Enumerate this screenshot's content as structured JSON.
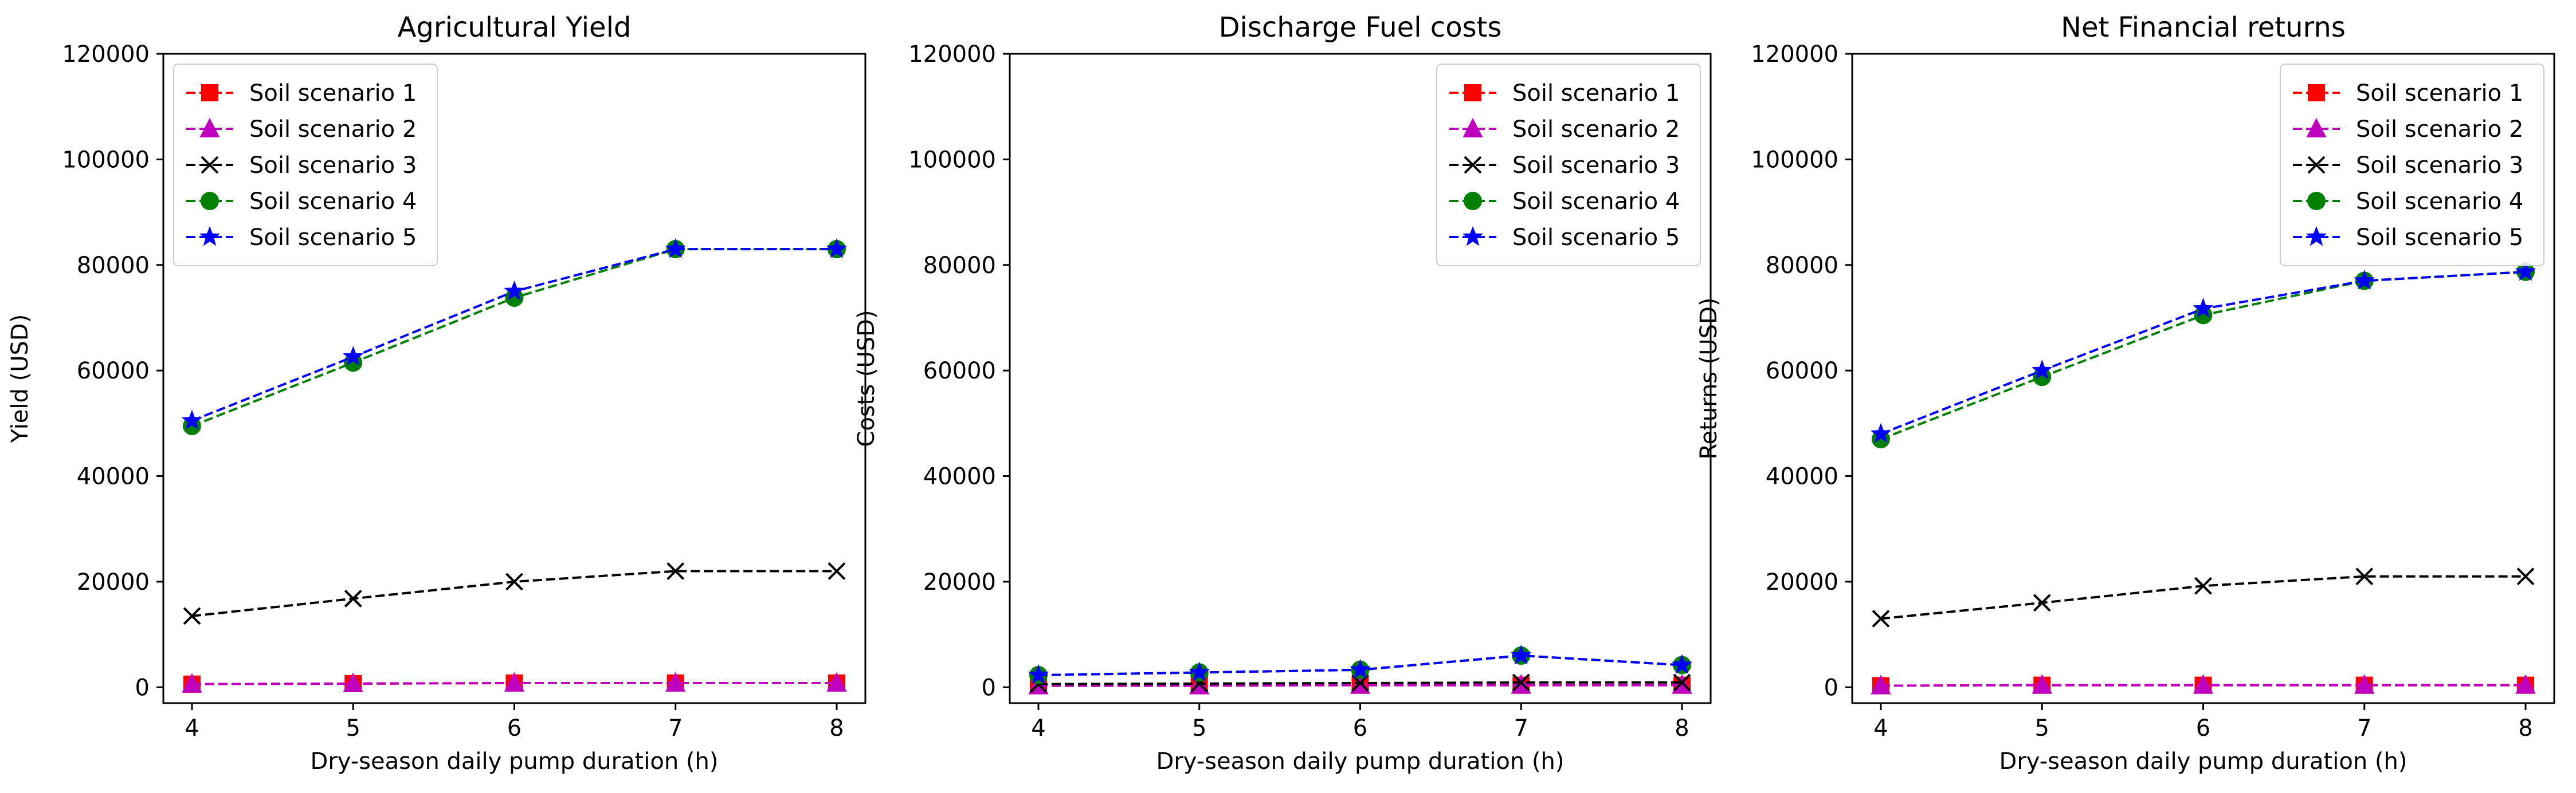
{
  "chart_data": [
    {
      "type": "line",
      "title": "Agricultural Yield",
      "xlabel": "Dry-season daily pump duration (h)",
      "ylabel": "Yield (USD)",
      "x": [
        4,
        5,
        6,
        7,
        8
      ],
      "xticks": [
        "4",
        "5",
        "6",
        "7",
        "8"
      ],
      "ylim": [
        -3000,
        120000
      ],
      "yticks": [
        "0",
        "20000",
        "40000",
        "60000",
        "80000",
        "100000",
        "120000"
      ],
      "legend_position": "upper left",
      "series": [
        {
          "name": "Soil scenario 1",
          "color": "#ff0000",
          "marker": "square",
          "values": [
            600,
            700,
            800,
            800,
            800
          ]
        },
        {
          "name": "Soil scenario 2",
          "color": "#bf00bf",
          "marker": "triangle",
          "values": [
            600,
            700,
            800,
            800,
            800
          ]
        },
        {
          "name": "Soil scenario 3",
          "color": "#000000",
          "marker": "x",
          "values": [
            13500,
            16800,
            20000,
            22000,
            22000
          ]
        },
        {
          "name": "Soil scenario 4",
          "color": "#008000",
          "marker": "circle",
          "values": [
            49500,
            61500,
            73800,
            83000,
            83000
          ]
        },
        {
          "name": "Soil scenario 5",
          "color": "#0000ff",
          "marker": "star",
          "values": [
            50500,
            62600,
            75000,
            83000,
            83000
          ]
        }
      ]
    },
    {
      "type": "line",
      "title": "Discharge Fuel costs",
      "xlabel": "Dry-season daily pump duration (h)",
      "ylabel": "Costs (USD)",
      "x": [
        4,
        5,
        6,
        7,
        8
      ],
      "xticks": [
        "4",
        "5",
        "6",
        "7",
        "8"
      ],
      "ylim": [
        -3000,
        120000
      ],
      "yticks": [
        "0",
        "20000",
        "40000",
        "60000",
        "80000",
        "100000",
        "120000"
      ],
      "legend_position": "upper right",
      "series": [
        {
          "name": "Soil scenario 1",
          "color": "#ff0000",
          "marker": "square",
          "values": [
            300,
            300,
            400,
            400,
            400
          ]
        },
        {
          "name": "Soil scenario 2",
          "color": "#bf00bf",
          "marker": "triangle",
          "values": [
            300,
            300,
            400,
            400,
            400
          ]
        },
        {
          "name": "Soil scenario 3",
          "color": "#000000",
          "marker": "x",
          "values": [
            600,
            700,
            800,
            900,
            900
          ]
        },
        {
          "name": "Soil scenario 4",
          "color": "#008000",
          "marker": "circle",
          "values": [
            2300,
            2800,
            3300,
            6000,
            4200
          ]
        },
        {
          "name": "Soil scenario 5",
          "color": "#0000ff",
          "marker": "star",
          "values": [
            2300,
            2800,
            3300,
            6000,
            4200
          ]
        }
      ]
    },
    {
      "type": "line",
      "title": "Net Financial returns",
      "xlabel": "Dry-season daily pump duration (h)",
      "ylabel": "Returns (USD)",
      "x": [
        4,
        5,
        6,
        7,
        8
      ],
      "xticks": [
        "4",
        "5",
        "6",
        "7",
        "8"
      ],
      "ylim": [
        -3000,
        120000
      ],
      "yticks": [
        "0",
        "20000",
        "40000",
        "60000",
        "80000",
        "100000",
        "120000"
      ],
      "legend_position": "upper right",
      "series": [
        {
          "name": "Soil scenario 1",
          "color": "#ff0000",
          "marker": "square",
          "values": [
            300,
            400,
            400,
            400,
            400
          ]
        },
        {
          "name": "Soil scenario 2",
          "color": "#bf00bf",
          "marker": "triangle",
          "values": [
            300,
            400,
            400,
            400,
            400
          ]
        },
        {
          "name": "Soil scenario 3",
          "color": "#000000",
          "marker": "x",
          "values": [
            13000,
            16000,
            19200,
            21000,
            21000
          ]
        },
        {
          "name": "Soil scenario 4",
          "color": "#008000",
          "marker": "circle",
          "values": [
            47000,
            58800,
            70500,
            77000,
            78700
          ]
        },
        {
          "name": "Soil scenario 5",
          "color": "#0000ff",
          "marker": "star",
          "values": [
            48000,
            60000,
            71700,
            77000,
            78700
          ]
        }
      ]
    }
  ]
}
